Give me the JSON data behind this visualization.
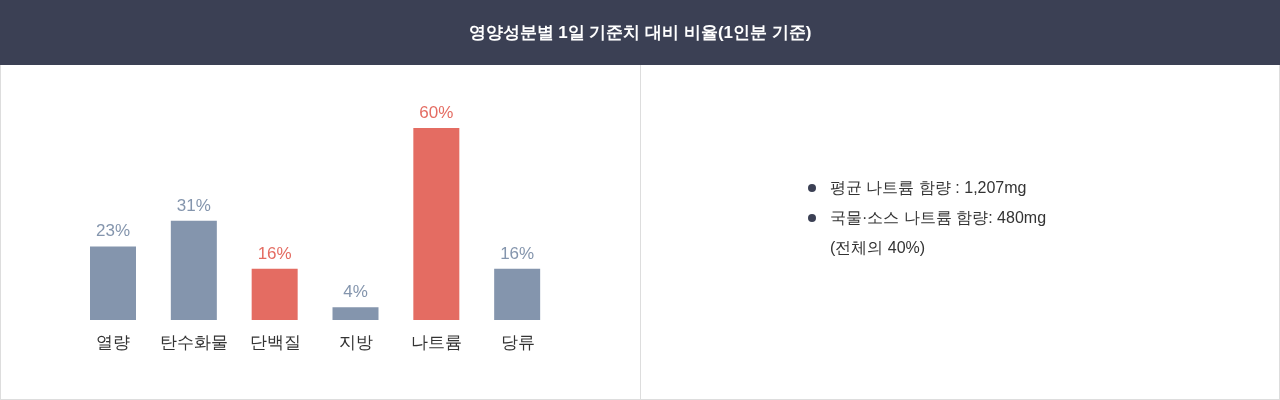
{
  "chart_data": {
    "type": "bar",
    "title": "영양성분별 1일 기준치 대비 비율(1인분 기준)",
    "categories": [
      "열량",
      "탄수화물",
      "단백질",
      "지방",
      "나트륨",
      "당류"
    ],
    "values": [
      23,
      31,
      16,
      4,
      60,
      16
    ],
    "value_labels": [
      "23%",
      "31%",
      "16%",
      "4%",
      "60%",
      "16%"
    ],
    "colors": [
      "#8495ad",
      "#8495ad",
      "#e46c62",
      "#8495ad",
      "#e46c62",
      "#8495ad"
    ],
    "annotations": [
      "평균 나트륨 함량 : 1,207mg",
      "국물·소스 나트륨 함량: 480mg (전체의 40%)"
    ]
  }
}
